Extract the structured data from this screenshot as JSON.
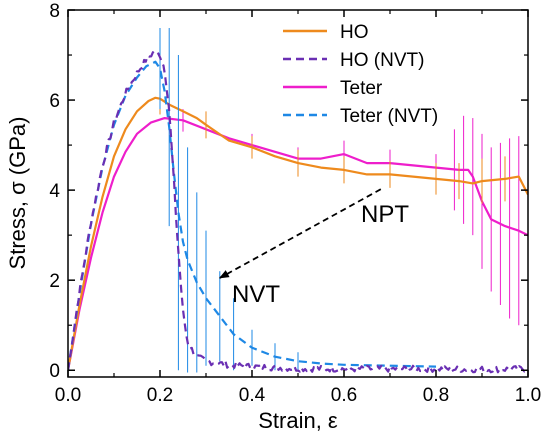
{
  "chart_data": {
    "type": "line",
    "xlabel": "Strain, ε",
    "ylabel": "Stress, σ (GPa)",
    "xlim": [
      0.0,
      1.0
    ],
    "ylim": [
      -0.15,
      8.0
    ],
    "x_ticks": [
      0.0,
      0.2,
      0.4,
      0.6,
      0.8,
      1.0
    ],
    "x_tick_labels": [
      "0.0",
      "0.2",
      "0.4",
      "0.6",
      "0.8",
      "1.0"
    ],
    "y_ticks": [
      0,
      2,
      4,
      6,
      8
    ],
    "y_tick_labels": [
      "0",
      "2",
      "4",
      "6",
      "8"
    ],
    "grid": false,
    "legend_position": "top-right",
    "series": [
      {
        "name": "HO",
        "color": "#ee8a1d",
        "dash": "solid",
        "x": [
          0.0,
          0.025,
          0.05,
          0.075,
          0.1,
          0.125,
          0.15,
          0.175,
          0.19,
          0.2,
          0.22,
          0.25,
          0.28,
          0.3,
          0.35,
          0.4,
          0.45,
          0.5,
          0.55,
          0.6,
          0.65,
          0.7,
          0.75,
          0.8,
          0.85,
          0.88,
          0.9,
          0.95,
          0.98,
          1.0
        ],
        "y": [
          0.0,
          1.45,
          2.75,
          3.85,
          4.75,
          5.35,
          5.75,
          5.98,
          6.05,
          6.03,
          5.9,
          5.75,
          5.6,
          5.45,
          5.1,
          4.95,
          4.75,
          4.6,
          4.5,
          4.45,
          4.35,
          4.35,
          4.3,
          4.25,
          4.2,
          4.15,
          4.2,
          4.25,
          4.3,
          3.9
        ],
        "error_bars": [
          {
            "x": 0.2,
            "y": 6.03,
            "err": 0.35
          },
          {
            "x": 0.3,
            "y": 5.45,
            "err": 0.3
          },
          {
            "x": 0.4,
            "y": 4.95,
            "err": 0.25
          },
          {
            "x": 0.5,
            "y": 4.6,
            "err": 0.3
          },
          {
            "x": 0.6,
            "y": 4.45,
            "err": 0.3
          },
          {
            "x": 0.7,
            "y": 4.35,
            "err": 0.3
          },
          {
            "x": 0.8,
            "y": 4.25,
            "err": 0.35
          },
          {
            "x": 0.85,
            "y": 4.2,
            "err": 0.4
          },
          {
            "x": 0.9,
            "y": 4.2,
            "err": 0.5
          },
          {
            "x": 0.95,
            "y": 4.25,
            "err": 0.5
          },
          {
            "x": 1.0,
            "y": 3.9,
            "err": 0.4
          }
        ]
      },
      {
        "name": "HO (NVT)",
        "color": "#6a2fb3",
        "dash": "dashed",
        "x": [
          0.0,
          0.025,
          0.05,
          0.075,
          0.1,
          0.125,
          0.15,
          0.17,
          0.185,
          0.2,
          0.21,
          0.22,
          0.23,
          0.24,
          0.25,
          0.26,
          0.28,
          0.3,
          0.35,
          0.4,
          0.45,
          0.5,
          0.6,
          0.7,
          0.8,
          0.9,
          1.0
        ],
        "y": [
          0.0,
          1.75,
          3.3,
          4.55,
          5.5,
          6.15,
          6.6,
          6.9,
          7.05,
          7.0,
          6.7,
          5.8,
          4.2,
          2.6,
          1.3,
          0.6,
          0.3,
          0.2,
          0.12,
          0.08,
          0.06,
          0.04,
          0.03,
          0.03,
          0.03,
          0.02,
          0.03
        ],
        "noise_amplitude": 0.07
      },
      {
        "name": "Teter",
        "color": "#ee1ecb",
        "dash": "solid",
        "x": [
          0.0,
          0.025,
          0.05,
          0.075,
          0.1,
          0.125,
          0.15,
          0.18,
          0.21,
          0.25,
          0.3,
          0.35,
          0.4,
          0.45,
          0.5,
          0.55,
          0.6,
          0.65,
          0.7,
          0.75,
          0.8,
          0.85,
          0.87,
          0.88,
          0.9,
          0.92,
          0.95,
          0.98,
          1.0
        ],
        "y": [
          0.0,
          1.35,
          2.5,
          3.5,
          4.3,
          4.85,
          5.25,
          5.5,
          5.6,
          5.55,
          5.35,
          5.15,
          5.0,
          4.85,
          4.7,
          4.7,
          4.8,
          4.6,
          4.6,
          4.55,
          4.5,
          4.45,
          4.45,
          4.3,
          3.75,
          3.35,
          3.2,
          3.1,
          3.0
        ],
        "error_bars": [
          {
            "x": 0.25,
            "y": 5.55,
            "err": 0.25
          },
          {
            "x": 0.4,
            "y": 5.0,
            "err": 0.25
          },
          {
            "x": 0.5,
            "y": 4.7,
            "err": 0.25
          },
          {
            "x": 0.6,
            "y": 4.8,
            "err": 0.3
          },
          {
            "x": 0.7,
            "y": 4.6,
            "err": 0.3
          },
          {
            "x": 0.8,
            "y": 4.5,
            "err": 0.3
          },
          {
            "x": 0.84,
            "y": 4.45,
            "err": 0.9
          },
          {
            "x": 0.86,
            "y": 4.45,
            "err": 1.2
          },
          {
            "x": 0.88,
            "y": 4.3,
            "err": 1.3
          },
          {
            "x": 0.9,
            "y": 3.75,
            "err": 1.5
          },
          {
            "x": 0.92,
            "y": 3.35,
            "err": 1.6
          },
          {
            "x": 0.94,
            "y": 3.25,
            "err": 1.8
          },
          {
            "x": 0.96,
            "y": 3.15,
            "err": 2.0
          },
          {
            "x": 0.98,
            "y": 3.1,
            "err": 2.1
          },
          {
            "x": 1.0,
            "y": 3.0,
            "err": 2.0
          }
        ]
      },
      {
        "name": "Teter (NVT)",
        "color": "#1e88e5",
        "dash": "dashed",
        "x": [
          0.0,
          0.025,
          0.05,
          0.075,
          0.1,
          0.125,
          0.15,
          0.17,
          0.19,
          0.2,
          0.21,
          0.22,
          0.23,
          0.24,
          0.25,
          0.26,
          0.28,
          0.3,
          0.33,
          0.36,
          0.4,
          0.45,
          0.5,
          0.55,
          0.6,
          0.7,
          0.8
        ],
        "y": [
          0.0,
          1.7,
          3.25,
          4.5,
          5.45,
          6.1,
          6.5,
          6.75,
          6.85,
          6.7,
          6.2,
          5.4,
          4.4,
          3.5,
          2.85,
          2.45,
          1.95,
          1.6,
          1.2,
          0.8,
          0.5,
          0.3,
          0.2,
          0.15,
          0.12,
          0.1,
          0.08
        ],
        "error_bars": [
          {
            "x": 0.2,
            "y": 6.7,
            "err": 0.9
          },
          {
            "x": 0.22,
            "y": 5.4,
            "err": 2.2
          },
          {
            "x": 0.24,
            "y": 3.5,
            "err": 3.5
          },
          {
            "x": 0.26,
            "y": 2.45,
            "err": 2.5
          },
          {
            "x": 0.28,
            "y": 1.95,
            "err": 2.0
          },
          {
            "x": 0.3,
            "y": 1.6,
            "err": 1.5
          },
          {
            "x": 0.33,
            "y": 1.2,
            "err": 1.0
          },
          {
            "x": 0.36,
            "y": 0.8,
            "err": 0.8
          },
          {
            "x": 0.4,
            "y": 0.5,
            "err": 0.4
          },
          {
            "x": 0.45,
            "y": 0.3,
            "err": 0.3
          },
          {
            "x": 0.5,
            "y": 0.2,
            "err": 0.2
          }
        ]
      }
    ],
    "annotations": [
      {
        "text": "NPT",
        "arrow_from": [
          0.68,
          4.02
        ],
        "arrow_to": [
          0.33,
          2.05
        ]
      },
      {
        "text": "NVT"
      }
    ]
  }
}
